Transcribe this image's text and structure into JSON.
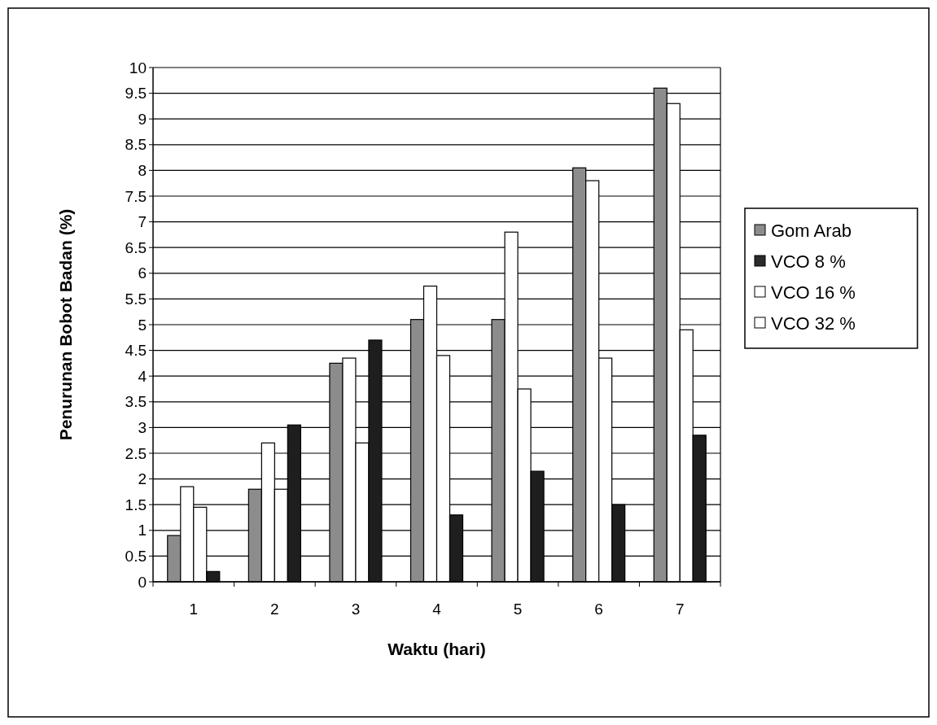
{
  "chart_data": {
    "type": "bar",
    "xlabel": "Waktu (hari)",
    "ylabel": "Penurunan Bobot  Badan (%)",
    "categories": [
      "1",
      "2",
      "3",
      "4",
      "5",
      "6",
      "7"
    ],
    "series": [
      {
        "name": "Gom Arab",
        "color": "#8c8c8c",
        "values": [
          0.9,
          1.8,
          4.25,
          5.1,
          5.1,
          8.05,
          9.6
        ]
      },
      {
        "name": "VCO 8 %",
        "color": "#2b2b2b",
        "values": [
          null,
          null,
          null,
          null,
          null,
          null,
          null
        ]
      },
      {
        "name": "VCO 16 %",
        "color": "#ffffff",
        "values": [
          1.85,
          2.7,
          4.35,
          5.75,
          6.8,
          7.8,
          9.3
        ]
      },
      {
        "name": "VCO 32 %",
        "color": "#ffffff",
        "values": [
          1.45,
          1.8,
          2.7,
          4.4,
          3.75,
          4.35,
          4.9
        ]
      },
      {
        "color": "#1e1e1e",
        "values": [
          0.2,
          3.05,
          4.7,
          1.3,
          2.15,
          1.5,
          2.85
        ]
      }
    ],
    "ylim": [
      0,
      10
    ],
    "yticks": [
      0,
      0.5,
      1,
      1.5,
      2,
      2.5,
      3,
      3.5,
      4,
      4.5,
      5,
      5.5,
      6,
      6.5,
      7,
      7.5,
      8,
      8.5,
      9,
      9.5,
      10
    ],
    "grid": "y",
    "legend": "right"
  }
}
